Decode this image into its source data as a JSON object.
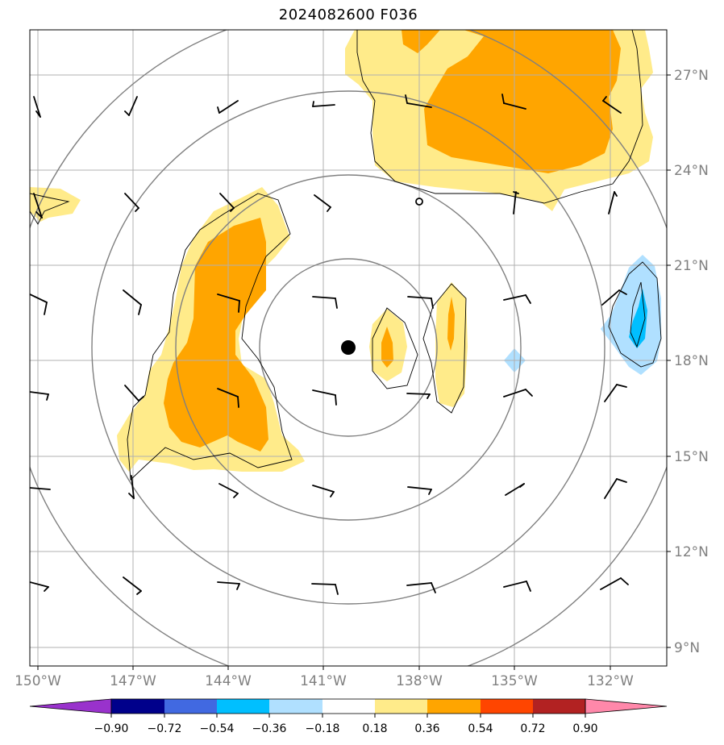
{
  "title": "2024082600 F036",
  "map": {
    "lon_range": [
      -150.2,
      -130.2
    ],
    "lat_range": [
      8.5,
      28.5
    ],
    "meridian_labels": [
      "150°W",
      "147°W",
      "144°W",
      "141°W",
      "138°W",
      "135°W",
      "132°W"
    ],
    "parallel_labels": [
      "9°N",
      "12°N",
      "15°N",
      "18°N",
      "21°N",
      "24°N",
      "27°N"
    ],
    "storm_center": {
      "lon": -140.3,
      "lat": 18.4
    },
    "secondary_marker": {
      "lon": -138.0,
      "lat": 23.0
    }
  },
  "colorbar": {
    "tick_labels": [
      "−0.90",
      "−0.72",
      "−0.54",
      "−0.36",
      "−0.18",
      "0.18",
      "0.36",
      "0.54",
      "0.72",
      "0.90"
    ],
    "colors": [
      "#9932cc",
      "#00008b",
      "#4169e1",
      "#00bfff",
      "#b0e0ff",
      "#ffffff",
      "#ffeb8a",
      "#ffa500",
      "#ff4500",
      "#b22222",
      "#ff88aa"
    ]
  },
  "colors": {
    "grid": "#b0b0b0",
    "range_rings": "#808080",
    "contour": "#000000",
    "positive_light": "#ffeb8a",
    "positive_mid": "#ffa500",
    "negative_light": "#b0e0ff",
    "negative_mid": "#00bfff"
  }
}
